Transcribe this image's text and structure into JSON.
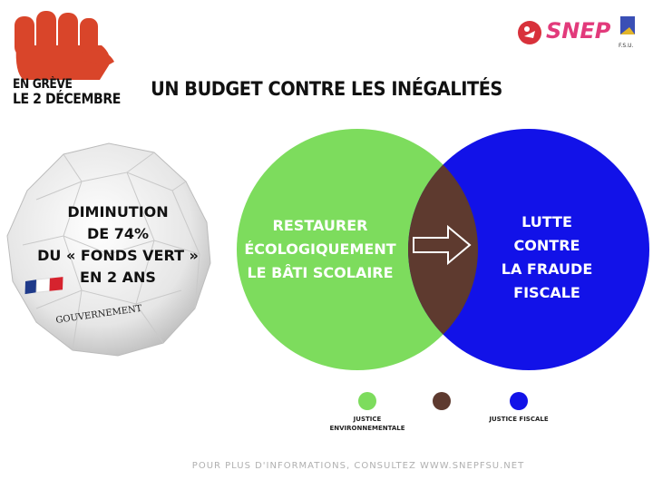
{
  "header": {
    "strike_line1": "EN GRÈVE",
    "strike_line2": "LE 2 DÉCEMBRE",
    "logo_text": "SNEP",
    "logo_subtext": "F.S.U.",
    "title": "UN BUDGET CONTRE LES INÉGALITÉS"
  },
  "paper_ball": {
    "line1": "DIMINUTION",
    "line2": "DE 74%",
    "line3": "DU « FONDS VERT »",
    "line4": "EN 2 ANS",
    "stamp": "GOUVERNEMENT"
  },
  "venn": {
    "left_label": [
      "RESTAURER",
      "ÉCOLOGIQUEMENT",
      "LE BÂTI SCOLAIRE"
    ],
    "right_label": [
      "LUTTE CONTRE",
      "LA FRAUDE",
      "FISCALE"
    ],
    "colors": {
      "left": "#7ddc5d",
      "right": "#1212e8",
      "intersection": "#5e3a2f"
    }
  },
  "legend": {
    "env_line1": "JUSTICE",
    "env_line2": "ENVIRONNEMENTALE",
    "fiscal": "JUSTICE FISCALE"
  },
  "footer": "POUR PLUS D'INFORMATIONS, CONSULTEZ WWW.SNEPFSU.NET"
}
